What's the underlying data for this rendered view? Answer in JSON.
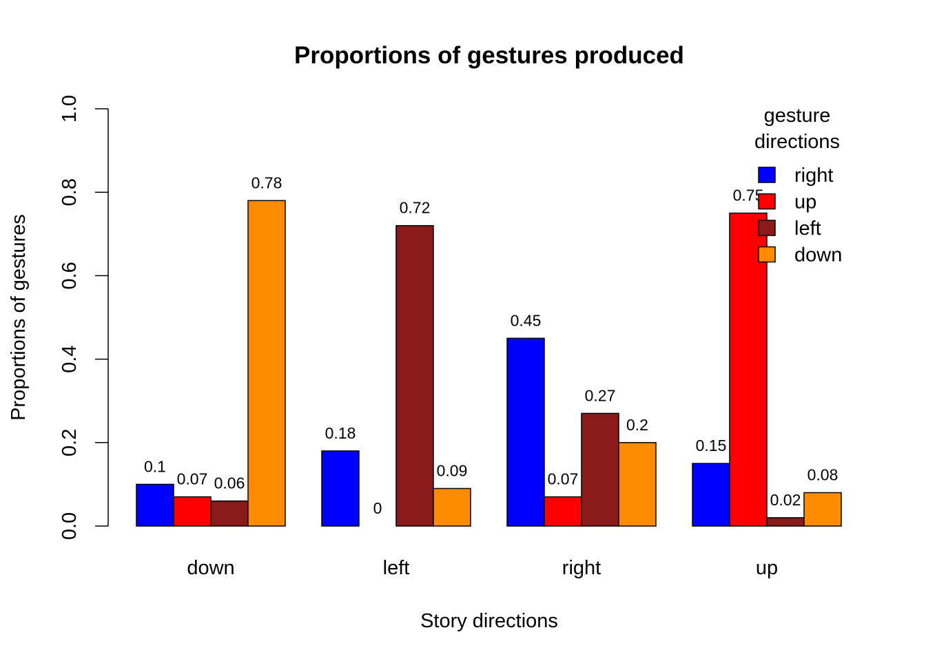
{
  "chart_data": {
    "type": "bar",
    "title": "Proportions of gestures produced",
    "xlabel": "Story directions",
    "ylabel": "Proportions of gestures",
    "categories": [
      "down",
      "left",
      "right",
      "up"
    ],
    "series": [
      {
        "name": "right",
        "color": "#0000ff",
        "values": [
          0.1,
          0.18,
          0.45,
          0.15
        ],
        "labels": [
          "0.1",
          "0.18",
          "0.45",
          "0.15"
        ]
      },
      {
        "name": "up",
        "color": "#ff0000",
        "values": [
          0.07,
          0,
          0.07,
          0.75
        ],
        "labels": [
          "0.07",
          "0",
          "0.07",
          "0.75"
        ]
      },
      {
        "name": "left",
        "color": "#8b1a1a",
        "values": [
          0.06,
          0.72,
          0.27,
          0.02
        ],
        "labels": [
          "0.06",
          "0.72",
          "0.27",
          "0.02"
        ]
      },
      {
        "name": "down",
        "color": "#ff8c00",
        "values": [
          0.78,
          0.09,
          0.2,
          0.08
        ],
        "labels": [
          "0.78",
          "0.09",
          "0.2",
          "0.08"
        ]
      }
    ],
    "ylim": [
      0,
      1
    ],
    "yticks": [
      "0.0",
      "0.2",
      "0.4",
      "0.6",
      "0.8",
      "1.0"
    ],
    "legend": {
      "title_line1": "gesture",
      "title_line2": "directions",
      "placement": "top-right"
    },
    "grid": false
  }
}
